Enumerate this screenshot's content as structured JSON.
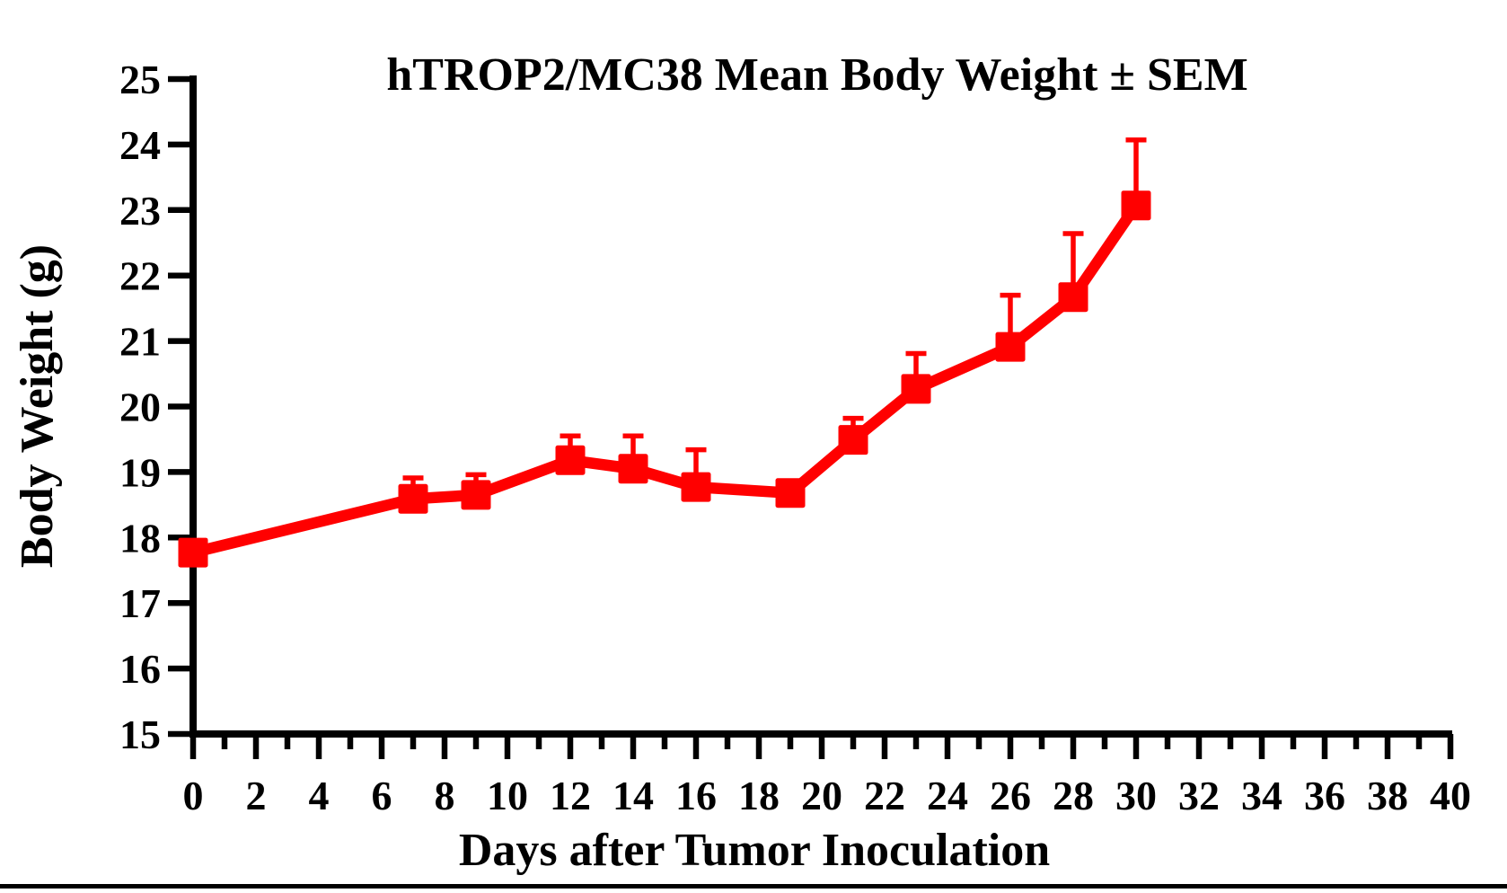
{
  "figure": {
    "title": "hTROP2/MC38 Mean Body Weight ± SEM",
    "xlabel": "Days after Tumor Inoculation",
    "ylabel": "Body Weight (g)"
  },
  "chart_data": {
    "type": "line",
    "title": "hTROP2/MC38 Mean Body Weight ± SEM",
    "xlabel": "Days after Tumor Inoculation",
    "ylabel": "Body Weight (g)",
    "grid": false,
    "legend": "none",
    "background_color": "#ffffff",
    "axis_color": "#000000",
    "xlim": [
      0,
      40
    ],
    "ylim": [
      15,
      25
    ],
    "xticks_labeled": [
      0,
      2,
      4,
      6,
      8,
      10,
      12,
      14,
      16,
      18,
      20,
      22,
      24,
      26,
      28,
      30,
      32,
      34,
      36,
      38,
      40
    ],
    "xticks_minor": [
      1,
      3,
      5,
      7,
      9,
      11,
      13,
      15,
      17,
      19,
      21,
      23,
      25,
      27,
      29,
      31,
      33,
      35,
      37,
      39
    ],
    "yticks": [
      15,
      16,
      17,
      18,
      19,
      20,
      21,
      22,
      23,
      24,
      25
    ],
    "series": [
      {
        "name": "hTROP2/MC38 mean body weight",
        "color": "#ff0000",
        "marker": "square",
        "error_bars": "upper-only",
        "x": [
          0,
          7,
          9,
          12,
          14,
          16,
          19,
          21,
          23,
          26,
          28,
          30
        ],
        "mean": [
          17.77,
          18.59,
          18.65,
          19.18,
          19.05,
          18.77,
          18.68,
          19.49,
          20.27,
          20.91,
          21.67,
          23.07
        ],
        "sem": [
          0,
          0.32,
          0.31,
          0.37,
          0.5,
          0.57,
          0,
          0.33,
          0.54,
          0.79,
          0.97,
          1.0
        ]
      }
    ]
  }
}
